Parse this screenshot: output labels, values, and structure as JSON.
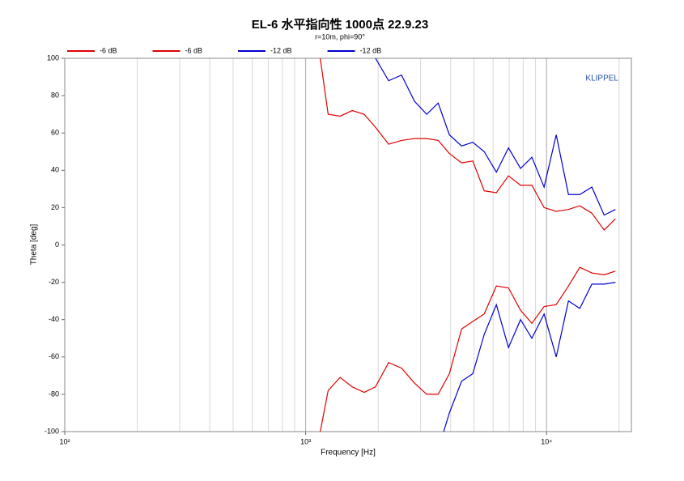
{
  "chart_data": {
    "type": "line",
    "title": "EL-6 水平指向性 1000点 22.9.23",
    "subtitle": "r=10m, phi=90°",
    "x_label": "Frequency [Hz]",
    "y_label": "Theta [deg]",
    "annotation": "KLIPPEL",
    "log_x": true,
    "grid": true,
    "legend": "top",
    "xlim": [
      100,
      22500
    ],
    "ylim": [
      -100,
      100
    ],
    "xticks": [
      {
        "value": 100,
        "label": "10²"
      },
      {
        "value": 1000,
        "label": "10³"
      },
      {
        "value": 10000,
        "label": "10⁴"
      }
    ],
    "xminorticks": [
      200,
      300,
      400,
      500,
      600,
      700,
      800,
      900,
      2000,
      3000,
      4000,
      5000,
      6000,
      7000,
      8000,
      9000,
      20000
    ],
    "yticks": [
      -100,
      -80,
      -60,
      -40,
      -20,
      0,
      20,
      40,
      60,
      80,
      100
    ],
    "series": [
      {
        "name": "-6 dB",
        "color": "#e00000",
        "x": [
          1150,
          1240,
          1390,
          1560,
          1750,
          1950,
          2210,
          2500,
          2830,
          3180,
          3550,
          3950,
          4440,
          4940,
          5510,
          6190,
          6950,
          7800,
          8690,
          9770,
          10970,
          12330,
          13740,
          15420,
          17340,
          19320
        ],
        "values": [
          100,
          70,
          69,
          72,
          70,
          63,
          54,
          56,
          57,
          57,
          56,
          49,
          44,
          45,
          29,
          28,
          37,
          32,
          32,
          20,
          18,
          19,
          21,
          17,
          8,
          14
        ]
      },
      {
        "name": "-6 dB",
        "color": "#e00000",
        "x": [
          1150,
          1240,
          1390,
          1560,
          1750,
          1950,
          2210,
          2500,
          2830,
          3180,
          3550,
          3950,
          4440,
          4940,
          5510,
          6190,
          6950,
          7800,
          8690,
          9770,
          10970,
          12330,
          13740,
          15420,
          17340,
          19320
        ],
        "values": [
          -100,
          -78,
          -71,
          -76,
          -79,
          -76,
          -63,
          -66,
          -74,
          -80,
          -80,
          -69,
          -45,
          -41,
          -37,
          -22,
          -23,
          -35,
          -42,
          -33,
          -32,
          -22,
          -12,
          -15,
          -16,
          -14
        ]
      },
      {
        "name": "-12 dB",
        "color": "#0000d0",
        "x": [
          1950,
          2210,
          2500,
          2830,
          3180,
          3550,
          3950,
          4440,
          4940,
          5510,
          6190,
          6950,
          7800,
          8690,
          9770,
          10970,
          12330,
          13740,
          15420,
          17340,
          19320
        ],
        "values": [
          100,
          88,
          91,
          77,
          70,
          76,
          59,
          53,
          55,
          50,
          39,
          52,
          41,
          47,
          31,
          59,
          27,
          27,
          31,
          16,
          19
        ]
      },
      {
        "name": "-12 dB",
        "color": "#0000d0",
        "x": [
          3740,
          3950,
          4440,
          4940,
          5510,
          6190,
          6950,
          7800,
          8690,
          9770,
          10970,
          12330,
          13740,
          15420,
          17340,
          19320
        ],
        "values": [
          -100,
          -90,
          -73,
          -69,
          -48,
          -32,
          -55,
          -40,
          -50,
          -37,
          -60,
          -30,
          -34,
          -21,
          -21,
          -20
        ]
      }
    ]
  }
}
